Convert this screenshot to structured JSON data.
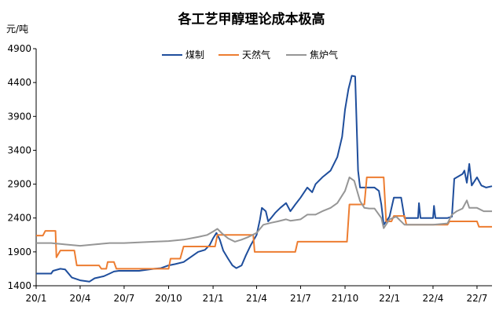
{
  "chart_data": {
    "type": "line",
    "title": "各工艺甲醇理论成本极高",
    "ylabel": "元/吨",
    "xlabel": "",
    "ylim": [
      1400,
      4900
    ],
    "yticks": [
      1400,
      1900,
      2400,
      2900,
      3400,
      3900,
      4400,
      4900
    ],
    "xlim": [
      "2020-01",
      "2022-08"
    ],
    "xticks": [
      {
        "label": "20/1",
        "date": "2020-01"
      },
      {
        "label": "20/4",
        "date": "2020-04"
      },
      {
        "label": "20/7",
        "date": "2020-07"
      },
      {
        "label": "20/10",
        "date": "2020-10"
      },
      {
        "label": "21/1",
        "date": "2021-01"
      },
      {
        "label": "21/4",
        "date": "2021-04"
      },
      {
        "label": "21/7",
        "date": "2021-07"
      },
      {
        "label": "21/10",
        "date": "2021-10"
      },
      {
        "label": "22/1",
        "date": "2022-01"
      },
      {
        "label": "22/4",
        "date": "2022-04"
      },
      {
        "label": "22/7",
        "date": "2022-07"
      }
    ],
    "grid": false,
    "legend_position": "top-center",
    "series": [
      {
        "name": "煤制",
        "color": "#1f4e9c",
        "points": [
          [
            "2020-01-01",
            1580
          ],
          [
            "2020-02-01",
            1580
          ],
          [
            "2020-02-05",
            1620
          ],
          [
            "2020-02-20",
            1650
          ],
          [
            "2020-03-01",
            1640
          ],
          [
            "2020-03-15",
            1520
          ],
          [
            "2020-04-01",
            1480
          ],
          [
            "2020-04-20",
            1460
          ],
          [
            "2020-05-01",
            1510
          ],
          [
            "2020-05-20",
            1540
          ],
          [
            "2020-06-01",
            1580
          ],
          [
            "2020-06-10",
            1610
          ],
          [
            "2020-06-20",
            1620
          ],
          [
            "2020-07-01",
            1620
          ],
          [
            "2020-08-01",
            1620
          ],
          [
            "2020-09-01",
            1650
          ],
          [
            "2020-09-15",
            1660
          ],
          [
            "2020-10-01",
            1700
          ],
          [
            "2020-10-15",
            1720
          ],
          [
            "2020-11-01",
            1750
          ],
          [
            "2020-11-15",
            1820
          ],
          [
            "2020-12-01",
            1900
          ],
          [
            "2020-12-15",
            1930
          ],
          [
            "2020-12-25",
            2000
          ],
          [
            "2021-01-01",
            2100
          ],
          [
            "2021-01-08",
            2180
          ],
          [
            "2021-01-15",
            2080
          ],
          [
            "2021-01-22",
            1920
          ],
          [
            "2021-02-01",
            1800
          ],
          [
            "2021-02-10",
            1700
          ],
          [
            "2021-02-18",
            1660
          ],
          [
            "2021-03-01",
            1700
          ],
          [
            "2021-03-10",
            1850
          ],
          [
            "2021-03-20",
            2000
          ],
          [
            "2021-04-01",
            2150
          ],
          [
            "2021-04-08",
            2380
          ],
          [
            "2021-04-12",
            2550
          ],
          [
            "2021-04-20",
            2500
          ],
          [
            "2021-04-25",
            2350
          ],
          [
            "2021-05-01",
            2400
          ],
          [
            "2021-05-10",
            2480
          ],
          [
            "2021-05-20",
            2550
          ],
          [
            "2021-06-01",
            2620
          ],
          [
            "2021-06-10",
            2500
          ],
          [
            "2021-06-20",
            2600
          ],
          [
            "2021-07-01",
            2700
          ],
          [
            "2021-07-15",
            2850
          ],
          [
            "2021-07-25",
            2780
          ],
          [
            "2021-08-01",
            2900
          ],
          [
            "2021-08-15",
            3000
          ],
          [
            "2021-09-01",
            3100
          ],
          [
            "2021-09-15",
            3300
          ],
          [
            "2021-09-25",
            3600
          ],
          [
            "2021-10-01",
            4000
          ],
          [
            "2021-10-08",
            4300
          ],
          [
            "2021-10-15",
            4500
          ],
          [
            "2021-10-22",
            4490
          ],
          [
            "2021-10-28",
            3100
          ],
          [
            "2021-11-01",
            2850
          ],
          [
            "2021-12-01",
            2850
          ],
          [
            "2021-12-10",
            2800
          ],
          [
            "2021-12-15",
            2600
          ],
          [
            "2021-12-20",
            2300
          ],
          [
            "2022-01-01",
            2420
          ],
          [
            "2022-01-10",
            2700
          ],
          [
            "2022-01-25",
            2700
          ],
          [
            "2022-02-01",
            2400
          ],
          [
            "2022-03-01",
            2400
          ],
          [
            "2022-03-03",
            2620
          ],
          [
            "2022-03-06",
            2400
          ],
          [
            "2022-04-01",
            2400
          ],
          [
            "2022-04-03",
            2580
          ],
          [
            "2022-04-06",
            2400
          ],
          [
            "2022-05-01",
            2400
          ],
          [
            "2022-05-10",
            2420
          ],
          [
            "2022-05-15",
            2980
          ],
          [
            "2022-06-01",
            3050
          ],
          [
            "2022-06-05",
            3100
          ],
          [
            "2022-06-10",
            2920
          ],
          [
            "2022-06-15",
            3200
          ],
          [
            "2022-06-20",
            2880
          ],
          [
            "2022-07-01",
            3000
          ],
          [
            "2022-07-10",
            2880
          ],
          [
            "2022-07-20",
            2850
          ],
          [
            "2022-08-01",
            2870
          ]
        ]
      },
      {
        "name": "天然气",
        "color": "#ed7d31",
        "points": [
          [
            "2020-01-01",
            2140
          ],
          [
            "2020-01-15",
            2140
          ],
          [
            "2020-01-20",
            2210
          ],
          [
            "2020-02-10",
            2210
          ],
          [
            "2020-02-12",
            1820
          ],
          [
            "2020-02-20",
            1920
          ],
          [
            "2020-03-20",
            1920
          ],
          [
            "2020-03-25",
            1700
          ],
          [
            "2020-05-10",
            1700
          ],
          [
            "2020-05-15",
            1650
          ],
          [
            "2020-05-25",
            1650
          ],
          [
            "2020-05-28",
            1750
          ],
          [
            "2020-06-10",
            1750
          ],
          [
            "2020-06-15",
            1650
          ],
          [
            "2020-10-01",
            1650
          ],
          [
            "2020-10-05",
            1800
          ],
          [
            "2020-10-25",
            1800
          ],
          [
            "2020-11-01",
            1980
          ],
          [
            "2021-01-05",
            1980
          ],
          [
            "2021-01-10",
            2150
          ],
          [
            "2021-03-25",
            2150
          ],
          [
            "2021-03-28",
            1900
          ],
          [
            "2021-06-20",
            1900
          ],
          [
            "2021-06-25",
            2050
          ],
          [
            "2021-10-05",
            2050
          ],
          [
            "2021-10-10",
            2600
          ],
          [
            "2021-11-10",
            2600
          ],
          [
            "2021-11-15",
            3000
          ],
          [
            "2021-12-20",
            3000
          ],
          [
            "2021-12-25",
            2350
          ],
          [
            "2022-01-05",
            2350
          ],
          [
            "2022-01-10",
            2430
          ],
          [
            "2022-02-01",
            2430
          ],
          [
            "2022-02-05",
            2300
          ],
          [
            "2022-05-01",
            2300
          ],
          [
            "2022-05-05",
            2350
          ],
          [
            "2022-07-01",
            2350
          ],
          [
            "2022-07-05",
            2270
          ],
          [
            "2022-08-01",
            2270
          ]
        ]
      },
      {
        "name": "焦炉气",
        "color": "#969696",
        "points": [
          [
            "2020-01-01",
            2030
          ],
          [
            "2020-02-01",
            2030
          ],
          [
            "2020-03-01",
            2010
          ],
          [
            "2020-04-01",
            1990
          ],
          [
            "2020-05-01",
            2010
          ],
          [
            "2020-06-01",
            2030
          ],
          [
            "2020-07-01",
            2030
          ],
          [
            "2020-08-01",
            2040
          ],
          [
            "2020-09-01",
            2050
          ],
          [
            "2020-10-01",
            2060
          ],
          [
            "2020-11-01",
            2080
          ],
          [
            "2020-12-01",
            2120
          ],
          [
            "2020-12-20",
            2150
          ],
          [
            "2021-01-01",
            2200
          ],
          [
            "2021-01-10",
            2240
          ],
          [
            "2021-01-20",
            2170
          ],
          [
            "2021-02-01",
            2100
          ],
          [
            "2021-02-15",
            2050
          ],
          [
            "2021-03-01",
            2080
          ],
          [
            "2021-03-15",
            2120
          ],
          [
            "2021-04-01",
            2180
          ],
          [
            "2021-04-15",
            2300
          ],
          [
            "2021-05-01",
            2330
          ],
          [
            "2021-05-15",
            2350
          ],
          [
            "2021-06-01",
            2380
          ],
          [
            "2021-06-10",
            2360
          ],
          [
            "2021-07-01",
            2380
          ],
          [
            "2021-07-15",
            2450
          ],
          [
            "2021-08-01",
            2450
          ],
          [
            "2021-08-15",
            2500
          ],
          [
            "2021-09-01",
            2550
          ],
          [
            "2021-09-15",
            2620
          ],
          [
            "2021-10-01",
            2800
          ],
          [
            "2021-10-10",
            3000
          ],
          [
            "2021-10-20",
            2950
          ],
          [
            "2021-11-01",
            2650
          ],
          [
            "2021-11-10",
            2550
          ],
          [
            "2021-11-20",
            2540
          ],
          [
            "2021-12-01",
            2540
          ],
          [
            "2021-12-15",
            2400
          ],
          [
            "2021-12-20",
            2250
          ],
          [
            "2022-01-01",
            2380
          ],
          [
            "2022-01-15",
            2420
          ],
          [
            "2022-02-01",
            2300
          ],
          [
            "2022-04-01",
            2300
          ],
          [
            "2022-05-01",
            2320
          ],
          [
            "2022-05-10",
            2450
          ],
          [
            "2022-05-20",
            2500
          ],
          [
            "2022-06-01",
            2540
          ],
          [
            "2022-06-10",
            2660
          ],
          [
            "2022-06-15",
            2550
          ],
          [
            "2022-07-01",
            2550
          ],
          [
            "2022-07-15",
            2500
          ],
          [
            "2022-08-01",
            2500
          ]
        ]
      }
    ]
  }
}
